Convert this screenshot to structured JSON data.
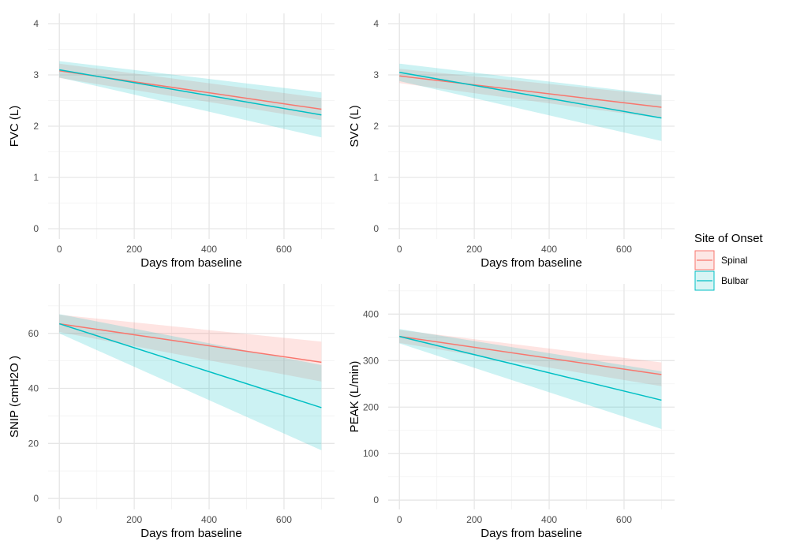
{
  "legend": {
    "title": "Site of Onset",
    "position": "right",
    "entries": [
      {
        "name": "Spinal",
        "color": "#F8766D"
      },
      {
        "name": "Bulbar",
        "color": "#00BFC4"
      }
    ]
  },
  "chart_data": [
    {
      "type": "line",
      "panel": "top-left",
      "xlabel": "Days from baseline",
      "ylabel": "FVC (L)",
      "xlim": [
        -30,
        735
      ],
      "ylim": [
        -0.2,
        4.2
      ],
      "xticks": [
        0,
        200,
        400,
        600
      ],
      "yticks": [
        0,
        1,
        2,
        3,
        4
      ],
      "series": [
        {
          "name": "Spinal",
          "x": [
            0,
            700
          ],
          "y": [
            3.08,
            2.33
          ],
          "ci_lower": [
            2.94,
            2.12
          ],
          "ci_upper": [
            3.22,
            2.55
          ]
        },
        {
          "name": "Bulbar",
          "x": [
            0,
            700
          ],
          "y": [
            3.1,
            2.22
          ],
          "ci_lower": [
            2.95,
            1.78
          ],
          "ci_upper": [
            3.27,
            2.66
          ]
        }
      ]
    },
    {
      "type": "line",
      "panel": "top-right",
      "xlabel": "Days from baseline",
      "ylabel": "SVC (L)",
      "xlim": [
        -30,
        735
      ],
      "ylim": [
        -0.2,
        4.2
      ],
      "xticks": [
        0,
        200,
        400,
        600
      ],
      "yticks": [
        0,
        1,
        2,
        3,
        4
      ],
      "series": [
        {
          "name": "Spinal",
          "x": [
            0,
            700
          ],
          "y": [
            2.98,
            2.37
          ],
          "ci_lower": [
            2.84,
            2.15
          ],
          "ci_upper": [
            3.12,
            2.6
          ]
        },
        {
          "name": "Bulbar",
          "x": [
            0,
            700
          ],
          "y": [
            3.05,
            2.16
          ],
          "ci_lower": [
            2.88,
            1.71
          ],
          "ci_upper": [
            3.22,
            2.61
          ]
        }
      ]
    },
    {
      "type": "line",
      "panel": "bottom-left",
      "xlabel": "Days from baseline",
      "ylabel": "SNIP (cmH2O )",
      "xlim": [
        -30,
        735
      ],
      "ylim": [
        -4,
        78
      ],
      "xticks": [
        0,
        200,
        400,
        600
      ],
      "yticks": [
        0,
        20,
        40,
        60
      ],
      "series": [
        {
          "name": "Spinal",
          "x": [
            0,
            700
          ],
          "y": [
            63.5,
            49.5
          ],
          "ci_lower": [
            60.5,
            42.5
          ],
          "ci_upper": [
            66.8,
            57.0
          ]
        },
        {
          "name": "Bulbar",
          "x": [
            0,
            700
          ],
          "y": [
            63.5,
            33.0
          ],
          "ci_lower": [
            60.0,
            17.5
          ],
          "ci_upper": [
            67.0,
            48.5
          ]
        }
      ]
    },
    {
      "type": "line",
      "panel": "bottom-right",
      "xlabel": "Days from baseline",
      "ylabel": "PEAK (L/min)",
      "xlim": [
        -30,
        735
      ],
      "ylim": [
        -20,
        465
      ],
      "xticks": [
        0,
        200,
        400,
        600
      ],
      "yticks": [
        0,
        100,
        200,
        300,
        400
      ],
      "series": [
        {
          "name": "Spinal",
          "x": [
            0,
            700
          ],
          "y": [
            352,
            270
          ],
          "ci_lower": [
            338,
            245
          ],
          "ci_upper": [
            366,
            296
          ]
        },
        {
          "name": "Bulbar",
          "x": [
            0,
            700
          ],
          "y": [
            352,
            215
          ],
          "ci_lower": [
            337,
            153
          ],
          "ci_upper": [
            368,
            277
          ]
        }
      ]
    }
  ]
}
